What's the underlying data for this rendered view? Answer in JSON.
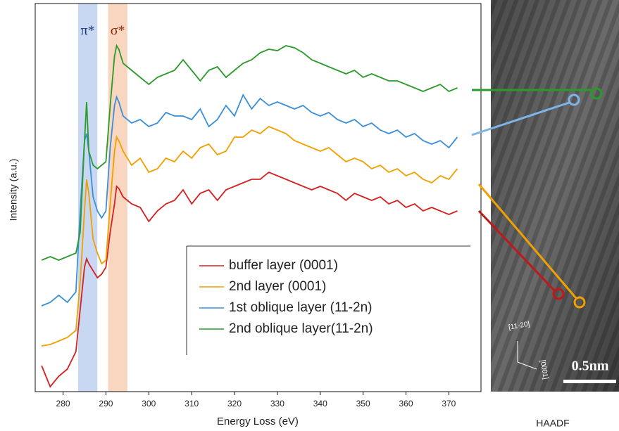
{
  "chart_data": {
    "type": "line",
    "x_label": "Energy Loss (eV)",
    "y_label": "Intensity (a.u.)",
    "xlim": [
      273.5,
      377.5
    ],
    "ylim": [
      0,
      55.2
    ],
    "xticks": [
      280,
      290,
      300,
      310,
      320,
      330,
      340,
      350,
      360,
      370
    ],
    "grid": false,
    "bands": [
      {
        "label": "π*",
        "range": [
          283.5,
          288
        ],
        "color": "#9db8e8",
        "label_color": "#1f3a7a"
      },
      {
        "label": "σ*",
        "range": [
          290.5,
          295
        ],
        "color": "#f3b48c",
        "label_color": "#8b2a10"
      }
    ],
    "x": [
      275,
      277,
      279,
      281,
      283,
      284,
      285,
      285.5,
      286,
      287,
      288,
      289,
      290,
      291,
      292,
      292.5,
      293,
      294,
      296,
      298,
      300,
      302,
      304,
      306,
      308,
      310,
      312,
      314,
      316,
      318,
      320,
      322,
      324,
      326,
      328,
      330,
      332,
      334,
      336,
      338,
      340,
      342,
      344,
      346,
      348,
      350,
      352,
      354,
      356,
      358,
      360,
      362,
      364,
      366,
      368,
      370,
      372
    ],
    "series": [
      {
        "name": "buffer layer (0001)",
        "color": "#d62020",
        "values": [
          3.7,
          0.7,
          2.2,
          3.2,
          5.7,
          11.7,
          17.7,
          18.9,
          18.2,
          17.2,
          16.2,
          16.7,
          17.7,
          22.7,
          26.7,
          29.2,
          28.9,
          27.7,
          26.7,
          26.2,
          24.2,
          25.7,
          26.7,
          27.2,
          28.7,
          26.7,
          28.2,
          28.7,
          27.2,
          28.7,
          29.2,
          29.7,
          30.2,
          30.2,
          31.2,
          30.7,
          30.2,
          29.7,
          29.2,
          28.7,
          29.2,
          28.7,
          28.2,
          27.2,
          28.2,
          27.7,
          27.2,
          27.7,
          26.7,
          27.2,
          26.2,
          26.7,
          25.7,
          26.2,
          25.7,
          25.2,
          25.7
        ]
      },
      {
        "name": "2nd layer (0001)",
        "color": "#f0a000",
        "values": [
          6.5,
          6.7,
          7.2,
          7.7,
          8.7,
          15.7,
          25.7,
          30.2,
          28.2,
          21.7,
          19.7,
          18.2,
          18.7,
          26.7,
          34.2,
          36.2,
          35.7,
          34.2,
          32.2,
          33.2,
          31.2,
          31.7,
          33.2,
          32.7,
          34.2,
          33.2,
          34.7,
          35.2,
          33.7,
          34.2,
          36.2,
          36.2,
          37.2,
          36.7,
          37.7,
          37.2,
          36.7,
          35.7,
          35.2,
          34.7,
          34.2,
          34.7,
          33.7,
          32.7,
          33.2,
          32.7,
          31.7,
          32.2,
          31.2,
          31.7,
          30.7,
          31.2,
          30.2,
          29.7,
          30.7,
          30.2,
          31.7
        ]
      },
      {
        "name": "1st oblique layer (11-2n)",
        "color": "#3a8fd8",
        "values": [
          12.2,
          12.7,
          13.7,
          12.7,
          14.2,
          25.7,
          35.7,
          36.7,
          34.2,
          27.7,
          25.7,
          24.7,
          25.7,
          34.7,
          40.7,
          41.9,
          41.2,
          39.2,
          38.2,
          38.7,
          37.7,
          38.2,
          39.7,
          39.2,
          39.2,
          38.7,
          40.2,
          37.7,
          38.7,
          40.7,
          39.2,
          42.2,
          40.2,
          41.7,
          40.7,
          41.2,
          40.7,
          40.2,
          40.7,
          39.7,
          39.2,
          39.7,
          38.7,
          38.2,
          38.7,
          37.7,
          38.2,
          37.2,
          36.7,
          37.2,
          36.2,
          36.7,
          35.7,
          35.2,
          35.7,
          34.7,
          36.2
        ]
      },
      {
        "name": "2nd oblique layer(11-2n)",
        "color": "#2a9a2a",
        "values": [
          18.7,
          19.2,
          18.7,
          19.2,
          19.7,
          22.7,
          35.7,
          41.2,
          34.2,
          32.2,
          31.7,
          32.2,
          32.7,
          40.7,
          47.7,
          49.2,
          48.7,
          46.7,
          45.7,
          44.7,
          43.7,
          44.7,
          45.2,
          45.7,
          47.2,
          45.7,
          44.2,
          45.7,
          46.2,
          44.7,
          45.7,
          46.7,
          47.2,
          48.2,
          48.7,
          48.5,
          49.2,
          48.9,
          48.2,
          47.2,
          46.7,
          46.2,
          45.7,
          45.2,
          45.7,
          44.7,
          45.2,
          44.7,
          44.2,
          44.2,
          43.7,
          43.2,
          42.7,
          43.2,
          43.7,
          42.7,
          43.2
        ]
      }
    ]
  },
  "image": {
    "label": "HAADF",
    "scale_bar": "0.5nm",
    "directions": [
      "[11-20]",
      "[0001]"
    ]
  }
}
